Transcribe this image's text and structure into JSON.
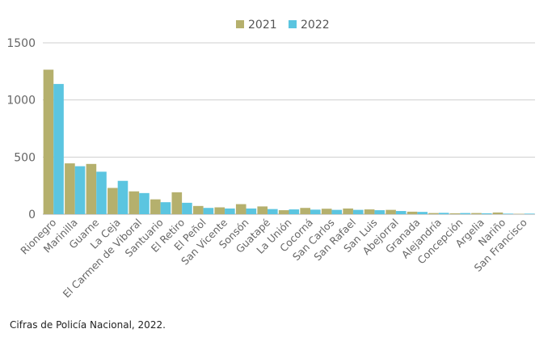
{
  "chart_data": {
    "type": "bar",
    "title": "",
    "xlabel": "",
    "ylabel": "",
    "ylim": [
      0,
      1500
    ],
    "yticks": [
      "0",
      "500",
      "1000",
      "1500"
    ],
    "grid": true,
    "legend_position": "top-center",
    "categories": [
      "Rionegro",
      "Marinilla",
      "Guarne",
      "La Ceja",
      "El Carmen de Viboral",
      "Santuario",
      "El Retiro",
      "El Peñol",
      "San Vicente",
      "Sonsón",
      "Guatapé",
      "La Unión",
      "Cocorná",
      "San Carlos",
      "San Rafael",
      "San Luis",
      "Abejorral",
      "Granada",
      "Alejandría",
      "Concepción",
      "Argelia",
      "Nariño",
      "San Francisco"
    ],
    "series": [
      {
        "name": "2021",
        "color": "#b5b06d",
        "values": [
          1265,
          445,
          440,
          230,
          200,
          130,
          192,
          72,
          60,
          88,
          68,
          35,
          55,
          48,
          50,
          42,
          38,
          22,
          10,
          8,
          10,
          15,
          3
        ]
      },
      {
        "name": "2022",
        "color": "#5bc5e0",
        "values": [
          1140,
          420,
          372,
          292,
          185,
          105,
          100,
          55,
          50,
          50,
          45,
          42,
          40,
          38,
          38,
          35,
          28,
          20,
          12,
          10,
          8,
          5,
          5
        ]
      }
    ]
  },
  "source_note": "Cifras de Policía Nacional, 2022."
}
